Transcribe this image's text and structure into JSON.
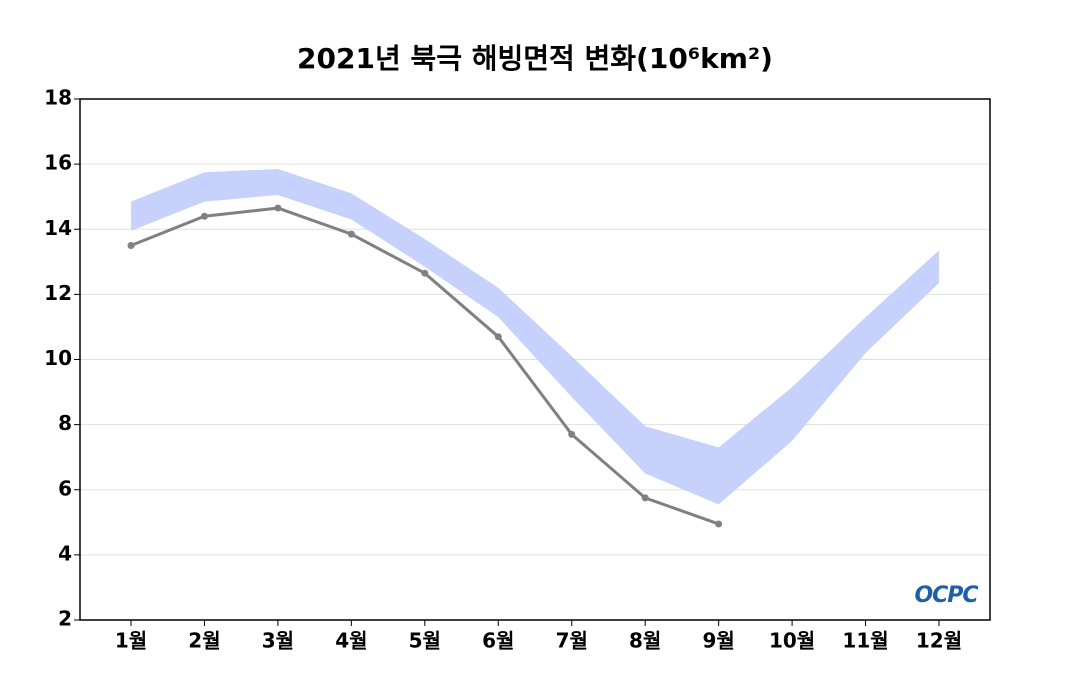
{
  "chart_data": {
    "type": "line",
    "title": "2021년 북극 해빙면적 변화(10⁶km²)",
    "categories": [
      "1월",
      "2월",
      "3월",
      "4월",
      "5월",
      "6월",
      "7월",
      "8월",
      "9월",
      "10월",
      "11월",
      "12월"
    ],
    "series": [
      {
        "color": "#808080",
        "values": [
          13.5,
          14.4,
          14.65,
          13.85,
          12.65,
          10.7,
          7.7,
          5.75,
          4.95,
          null,
          null,
          null
        ]
      }
    ],
    "band": {
      "color": "#c6d1fc",
      "upper": [
        14.85,
        15.75,
        15.85,
        15.1,
        13.7,
        12.2,
        10.1,
        7.95,
        7.3,
        9.15,
        11.3,
        13.35
      ],
      "lower": [
        13.95,
        14.85,
        15.05,
        14.3,
        12.85,
        11.3,
        8.85,
        6.5,
        5.55,
        7.5,
        10.2,
        12.35
      ]
    },
    "ylim": [
      2,
      18
    ],
    "yticks": [
      2,
      4,
      6,
      8,
      10,
      12,
      14,
      16,
      18
    ],
    "grid": true,
    "logo": "OCPC"
  }
}
